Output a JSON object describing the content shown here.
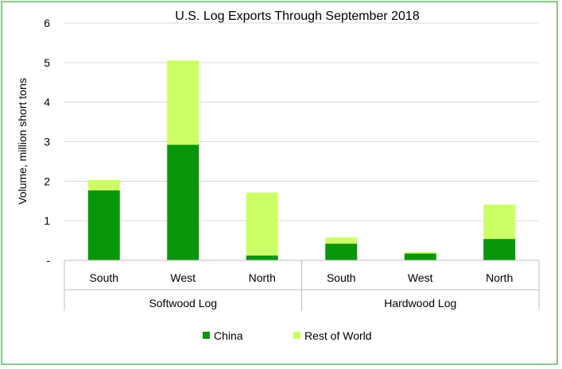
{
  "chart_data": {
    "type": "bar",
    "stacked": true,
    "title": "U.S. Log Exports Through September 2018",
    "ylabel": "Volume,  million short tons",
    "xlabel": "",
    "ylim": [
      0,
      6
    ],
    "yticks": [
      "-",
      "1",
      "2",
      "3",
      "4",
      "5",
      "6"
    ],
    "grid": true,
    "legend_position": "bottom",
    "groups": [
      {
        "label": "Softwood Log",
        "categories": [
          "South",
          "West",
          "North"
        ]
      },
      {
        "label": "Hardwood Log",
        "categories": [
          "South",
          "West",
          "North"
        ]
      }
    ],
    "categories": [
      "South",
      "West",
      "North",
      "South",
      "West",
      "North"
    ],
    "series": [
      {
        "name": "China",
        "color": "#0a960a",
        "values": [
          1.77,
          2.92,
          0.12,
          0.42,
          0.17,
          0.54
        ]
      },
      {
        "name": "Rest of World",
        "color": "#ccff66",
        "values": [
          0.26,
          2.13,
          1.59,
          0.16,
          0.04,
          0.87
        ]
      }
    ]
  },
  "colors": {
    "border": "#3aa53a",
    "grid": "#d9d9d9",
    "axis": "#bfbfbf"
  }
}
